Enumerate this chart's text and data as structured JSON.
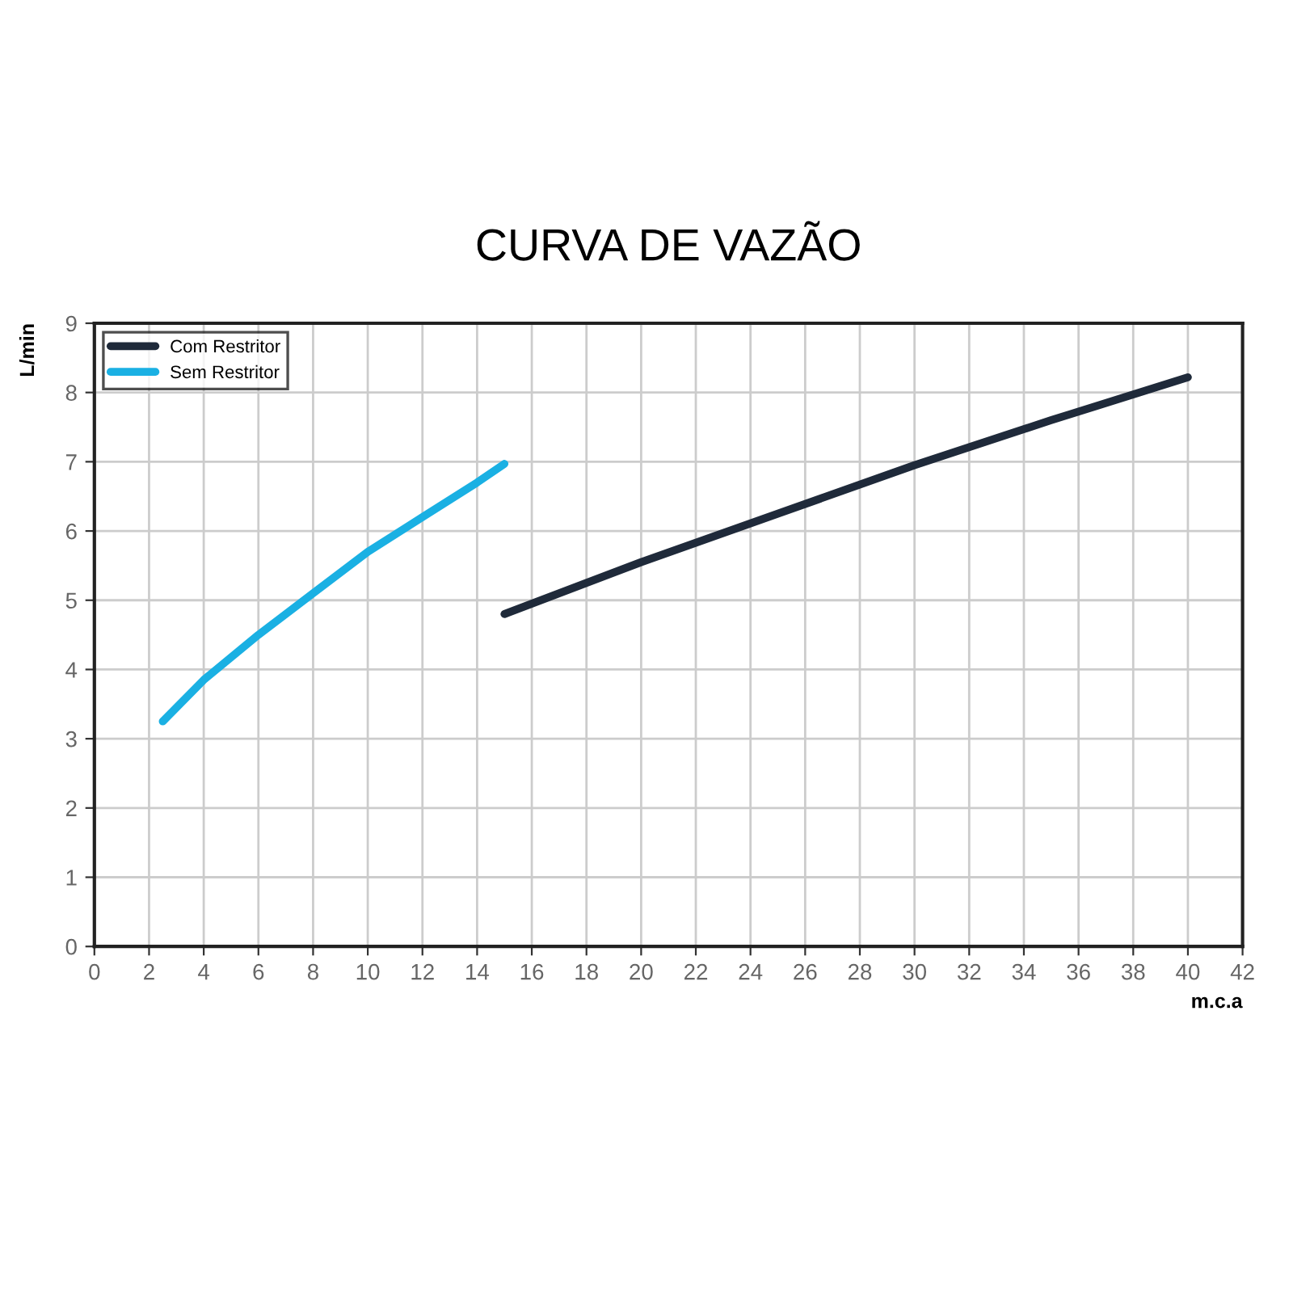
{
  "chart_data": {
    "type": "line",
    "title": "CURVA DE VAZÃO",
    "xlabel": "m.c.a",
    "ylabel": "L/min",
    "xlim": [
      0,
      42
    ],
    "xticks": [
      0,
      2,
      4,
      6,
      8,
      10,
      12,
      14,
      16,
      18,
      20,
      22,
      24,
      26,
      28,
      30,
      32,
      34,
      36,
      38,
      40,
      42
    ],
    "ylim": [
      0,
      9
    ],
    "yticks": [
      0,
      1,
      2,
      3,
      4,
      5,
      6,
      7,
      8,
      9
    ],
    "grid": true,
    "legend": "top left",
    "series": [
      {
        "name": "Com Restritor",
        "color": "#1f2a3a",
        "x": [
          15,
          20,
          25,
          30,
          35,
          40
        ],
        "values": [
          4.8,
          5.55,
          6.25,
          6.95,
          7.6,
          8.22
        ]
      },
      {
        "name": "Sem Restritor",
        "color": "#1ab0e3",
        "x": [
          2.5,
          4,
          6,
          8,
          10,
          12,
          14,
          15
        ],
        "values": [
          3.25,
          3.85,
          4.5,
          5.1,
          5.7,
          6.2,
          6.7,
          6.97
        ]
      }
    ]
  }
}
